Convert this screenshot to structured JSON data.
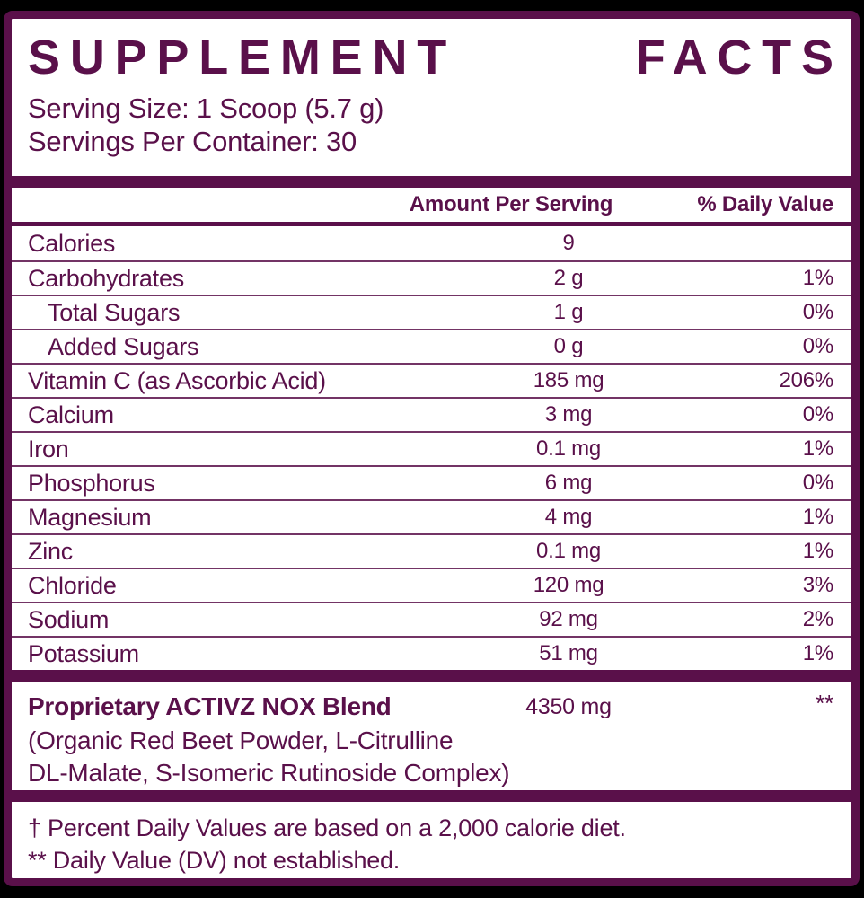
{
  "label": {
    "title": "SUPPLEMENT FACTS",
    "title_words": [
      "SUPPLEMENT",
      "FACTS"
    ],
    "serving_size": "Serving Size: 1 Scoop (5.7 g)",
    "servings_per_container": "Servings Per Container: 30",
    "columns": {
      "amount": "Amount Per Serving",
      "dv": "% Daily Value"
    },
    "rows": [
      {
        "name": "Calories",
        "amount": "9",
        "dv": "",
        "indent": false
      },
      {
        "name": "Carbohydrates",
        "amount": "2 g",
        "dv": "1%",
        "indent": false
      },
      {
        "name": "Total Sugars",
        "amount": "1 g",
        "dv": "0%",
        "indent": true
      },
      {
        "name": "Added Sugars",
        "amount": "0 g",
        "dv": "0%",
        "indent": true
      },
      {
        "name": "Vitamin C (as Ascorbic Acid)",
        "amount": "185 mg",
        "dv": "206%",
        "indent": false
      },
      {
        "name": "Calcium",
        "amount": "3 mg",
        "dv": "0%",
        "indent": false
      },
      {
        "name": "Iron",
        "amount": "0.1 mg",
        "dv": "1%",
        "indent": false
      },
      {
        "name": "Phosphorus",
        "amount": "6 mg",
        "dv": "0%",
        "indent": false
      },
      {
        "name": "Magnesium",
        "amount": "4 mg",
        "dv": "1%",
        "indent": false
      },
      {
        "name": "Zinc",
        "amount": "0.1 mg",
        "dv": "1%",
        "indent": false
      },
      {
        "name": "Chloride",
        "amount": "120 mg",
        "dv": "3%",
        "indent": false
      },
      {
        "name": "Sodium",
        "amount": "92 mg",
        "dv": "2%",
        "indent": false
      },
      {
        "name": "Potassium",
        "amount": "51 mg",
        "dv": "1%",
        "indent": false
      }
    ],
    "blend": {
      "name": "Proprietary ACTIVZ NOX Blend",
      "amount": "4350 mg",
      "dv": "**",
      "details_line1": "(Organic Red Beet Powder, L-Citrulline",
      "details_line2": "DL-Malate, S-Isomeric Rutinoside Complex)"
    },
    "footnotes": [
      "† Percent Daily Values are based on a 2,000 calorie diet.",
      "** Daily Value (DV) not established."
    ],
    "colors": {
      "plum": "#5a104a",
      "background": "#000000",
      "panel": "#ffffff"
    }
  }
}
